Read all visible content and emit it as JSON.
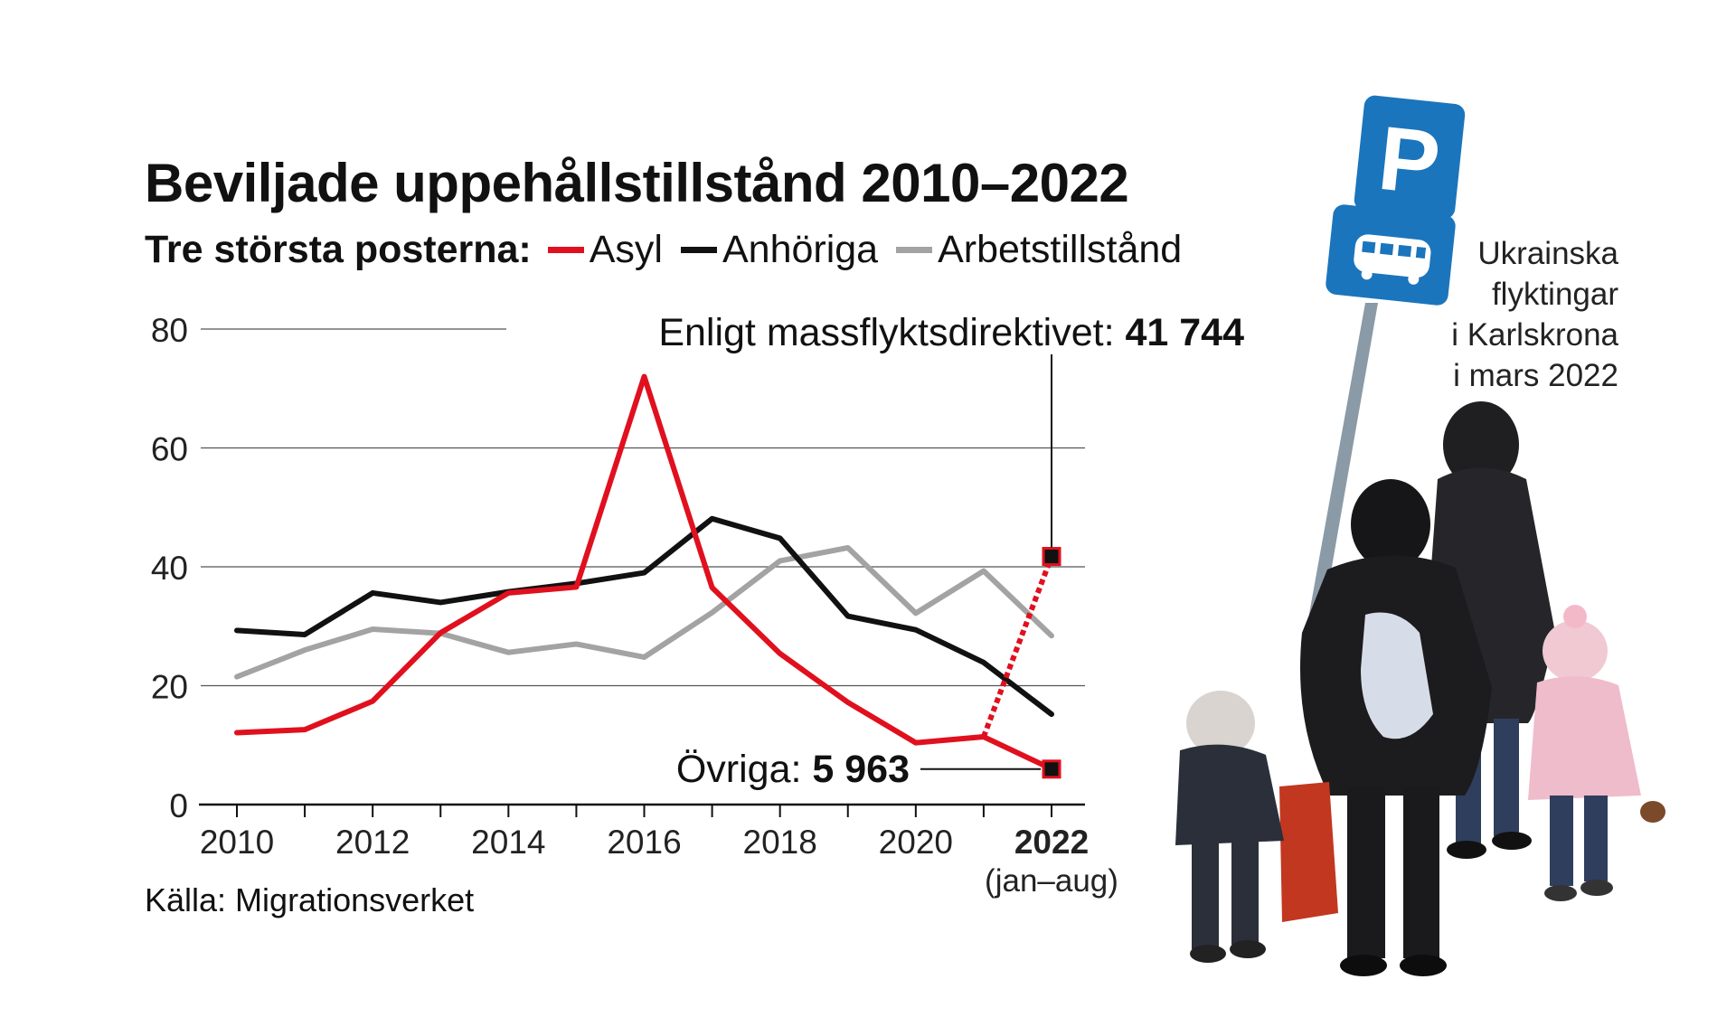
{
  "title": "Beviljade uppehållstillstånd 2010–2022",
  "legend": {
    "lead": "Tre största posterna:",
    "items": [
      {
        "label": "Asyl",
        "color": "#e0101e"
      },
      {
        "label": "Anhöriga",
        "color": "#111111"
      },
      {
        "label": "Arbetstillstånd",
        "color": "#a3a3a3"
      }
    ]
  },
  "annotations": {
    "mass_label": "Enligt massflyktsdirektivet:",
    "mass_value": "41 744",
    "other_label": "Övriga:",
    "other_value": "5 963"
  },
  "source": "Källa: Migrationsverket",
  "photo_caption": [
    "Ukrainska",
    "flyktingar",
    "i Karlskrona",
    "i mars 2022"
  ],
  "photo_icons": [
    "parking-sign-icon",
    "bus-sign-icon",
    "refugee-family-icon"
  ],
  "chart_data": {
    "type": "line",
    "unit": "tusental",
    "x": [
      2010,
      2011,
      2012,
      2013,
      2014,
      2015,
      2016,
      2017,
      2018,
      2019,
      2020,
      2021,
      2022
    ],
    "x_tick_labels": [
      "2010",
      "2012",
      "2014",
      "2016",
      "2018",
      "2020",
      "2022"
    ],
    "x_last_sublabel": "(jan–aug)",
    "y_ticks": [
      0,
      20,
      40,
      60,
      80
    ],
    "ylim": [
      0,
      80
    ],
    "series": [
      {
        "name": "Asyl",
        "color": "#e0101e",
        "values": [
          12.1,
          12.6,
          17.4,
          28.9,
          35.6,
          36.6,
          72,
          36.5,
          25.4,
          17.2,
          10.4,
          11.4,
          6.0
        ]
      },
      {
        "name": "Anhöriga",
        "color": "#111111",
        "values": [
          29.3,
          28.6,
          35.6,
          34,
          35.8,
          37.2,
          39,
          48.1,
          44.8,
          31.7,
          29.4,
          23.9,
          15.2
        ]
      },
      {
        "name": "Arbetstillstånd",
        "color": "#a3a3a3",
        "values": [
          21.5,
          26,
          29.5,
          28.8,
          25.6,
          27,
          24.8,
          32.3,
          41,
          43.2,
          32.2,
          39.3,
          28.4
        ]
      }
    ],
    "highlight": {
      "from": {
        "x": 2021,
        "y": 11.4
      },
      "to": {
        "x": 2022,
        "y": 41.744
      },
      "color": "#e0101e",
      "style": "dotted"
    },
    "other_point": {
      "x": 2022,
      "y": 5.963
    },
    "grid": true
  }
}
